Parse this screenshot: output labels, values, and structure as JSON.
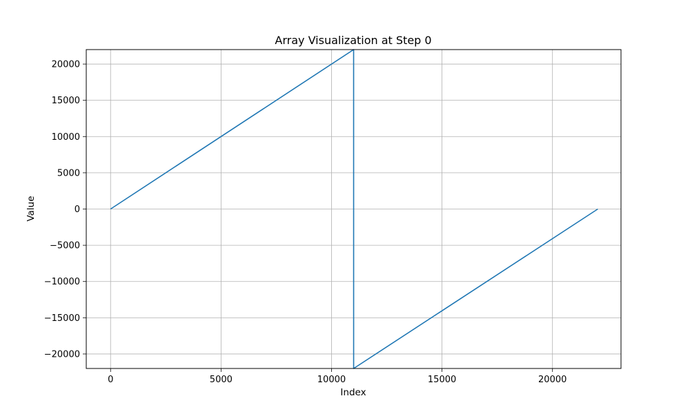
{
  "chart_data": {
    "type": "line",
    "title": "Array Visualization at Step 0",
    "xlabel": "Index",
    "ylabel": "Value",
    "xlim": [
      -1100,
      23100
    ],
    "ylim": [
      -22000,
      22000
    ],
    "x_ticks": [
      0,
      5000,
      10000,
      15000,
      20000
    ],
    "y_ticks": [
      -20000,
      -15000,
      -10000,
      -5000,
      0,
      5000,
      10000,
      15000,
      20000
    ],
    "x_tick_labels": [
      "0",
      "5000",
      "10000",
      "15000",
      "20000"
    ],
    "y_tick_labels": [
      "−20000",
      "−15000",
      "−10000",
      "−5000",
      "0",
      "5000",
      "10000",
      "15000",
      "20000"
    ],
    "grid": true,
    "series": [
      {
        "color": "#1f77b4",
        "points": [
          [
            0,
            0
          ],
          [
            11000,
            22000
          ],
          [
            11001,
            -22000
          ],
          [
            22050,
            0
          ]
        ]
      }
    ]
  }
}
